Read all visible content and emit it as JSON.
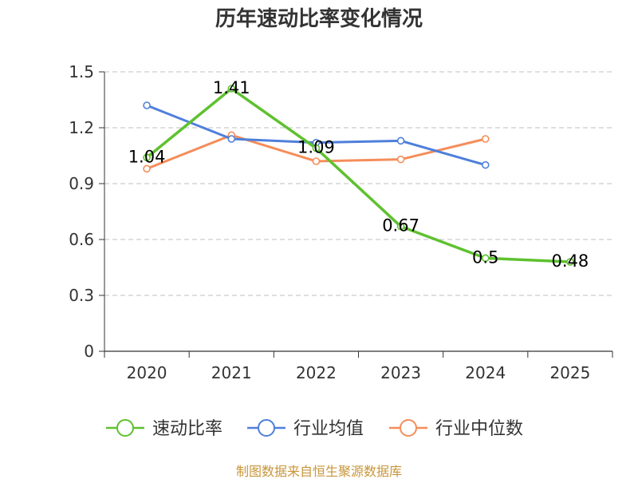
{
  "chart_data": {
    "type": "line",
    "title": "历年速动比率变化情况",
    "categories": [
      "2020",
      "2021",
      "2022",
      "2023",
      "2024",
      "2025"
    ],
    "yticks": [
      "0",
      "0.3",
      "0.6",
      "0.9",
      "1.2",
      "1.5"
    ],
    "ylim": [
      0,
      1.5
    ],
    "xlabel": "",
    "ylabel": "",
    "grid": true,
    "legend_position": "bottom",
    "series": [
      {
        "name": "速动比率",
        "color": "#5ec12f",
        "values": [
          1.04,
          1.41,
          1.09,
          0.67,
          0.5,
          0.48
        ],
        "labels": [
          "1.04",
          "1.41",
          "1.09",
          "0.67",
          "0.5",
          "0.48"
        ]
      },
      {
        "name": "行业均值",
        "color": "#4f7fdb",
        "values": [
          1.32,
          1.14,
          1.12,
          1.13,
          1.0,
          null
        ]
      },
      {
        "name": "行业中位数",
        "color": "#f58d5a",
        "values": [
          0.98,
          1.16,
          1.02,
          1.03,
          1.14,
          null
        ]
      }
    ]
  },
  "source": "制图数据来自恒生聚源数据库"
}
